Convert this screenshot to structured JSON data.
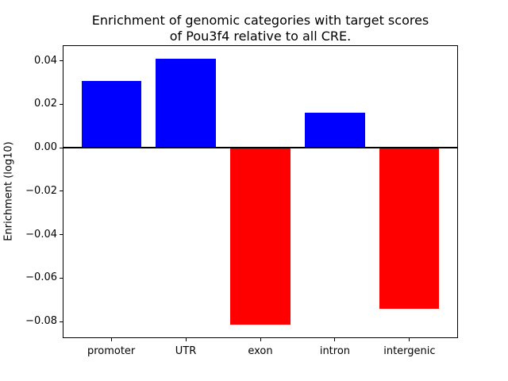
{
  "chart_data": {
    "type": "bar",
    "title_line1": "Enrichment of genomic categories with target scores",
    "title_line2": "of Pou3f4 relative to all CRE.",
    "ylabel": "Enrichment (log10)",
    "xlabel": "",
    "categories": [
      "promoter",
      "UTR",
      "exon",
      "intron",
      "intergenic"
    ],
    "values": [
      0.0306,
      0.041,
      -0.0816,
      0.0162,
      -0.0743
    ],
    "bar_colors": [
      "#0000ff",
      "#0000ff",
      "#ff0000",
      "#0000ff",
      "#ff0000"
    ],
    "positive_color": "#0000ff",
    "negative_color": "#ff0000",
    "zero_line_color": "#000000",
    "ylim": [
      -0.0873,
      0.0468
    ],
    "xlim": [
      -0.64,
      4.64
    ],
    "bar_width": 0.8,
    "grid": false,
    "legend": false,
    "ytick_values": [
      0.04,
      0.02,
      0.0,
      -0.02,
      -0.04,
      -0.06,
      -0.08
    ],
    "ytick_labels": [
      "0.04",
      "0.02",
      "0.00",
      "−0.02",
      "−0.04",
      "−0.06",
      "−0.08"
    ]
  }
}
